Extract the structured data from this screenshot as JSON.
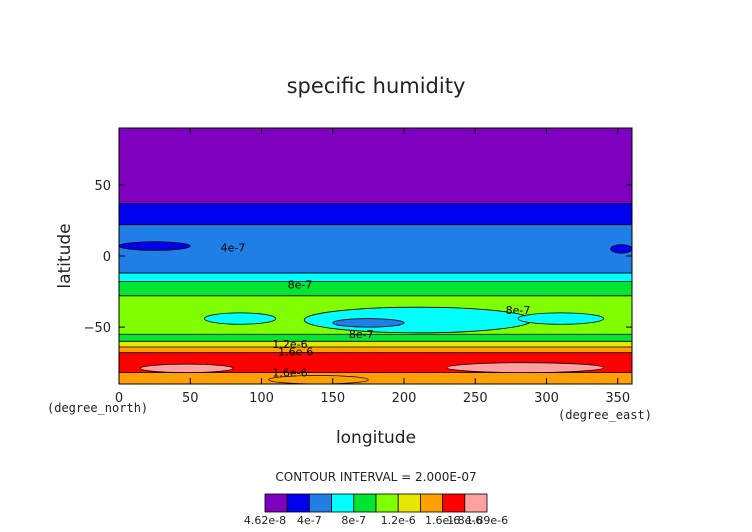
{
  "chart_data": {
    "type": "heatmap",
    "title": "specific humidity",
    "xlabel": "longitude",
    "ylabel": "latitude",
    "x_unit_label": "(degree_east)",
    "y_unit_label": "(degree_north)",
    "xlim": [
      0,
      360
    ],
    "ylim": [
      -90,
      90
    ],
    "x_ticks": [
      0,
      50,
      100,
      150,
      200,
      250,
      300,
      350
    ],
    "y_ticks": [
      50,
      0,
      -50
    ],
    "x_tick_labels": [
      "0",
      "50",
      "100",
      "150",
      "200",
      "250",
      "300",
      "350"
    ],
    "y_tick_labels": [
      "50",
      "0",
      "−50"
    ],
    "contour_interval_text": "CONTOUR INTERVAL = 2.000E-07",
    "levels": [
      4.62e-08,
      2e-07,
      4e-07,
      6e-07,
      8e-07,
      1e-06,
      1.2e-06,
      1.4e-06,
      1.6e-06,
      1.8e-06,
      1.89e-06
    ],
    "colorbar_colors": [
      "#7f00bf",
      "#0000ee",
      "#1f7fe6",
      "#00ffff",
      "#00e632",
      "#7fff00",
      "#e6e600",
      "#ff9f00",
      "#ff0000",
      "#ffa0a0"
    ],
    "colorbar_labels": [
      {
        "level": 4.62e-08,
        "text": "4.62e-8"
      },
      {
        "level": 4e-07,
        "text": "4e-7"
      },
      {
        "level": 8e-07,
        "text": "8e-7"
      },
      {
        "level": 1.2e-06,
        "text": "1.2e-6"
      },
      {
        "level": 1.6e-06,
        "text": "1.6e-6"
      },
      {
        "level": 1.8e-06,
        "text": "1.8e-6"
      },
      {
        "level": 1.89e-06,
        "text": "1.89e-6"
      }
    ],
    "latitude_bands": [
      {
        "lat_min": 37,
        "lat_max": 90,
        "level_index": 0
      },
      {
        "lat_min": 22,
        "lat_max": 37,
        "level_index": 1
      },
      {
        "lat_min": -12,
        "lat_max": 22,
        "level_index": 2
      },
      {
        "lat_min": -18,
        "lat_max": -12,
        "level_index": 3
      },
      {
        "lat_min": -28,
        "lat_max": -18,
        "level_index": 4
      },
      {
        "lat_min": -55,
        "lat_max": -28,
        "level_index": 5
      },
      {
        "lat_min": -60,
        "lat_max": -55,
        "level_index": 4
      },
      {
        "lat_min": -64,
        "lat_max": -60,
        "level_index": 6
      },
      {
        "lat_min": -68,
        "lat_max": -64,
        "level_index": 7
      },
      {
        "lat_min": -82,
        "lat_max": -68,
        "level_index": 8
      },
      {
        "lat_min": -90,
        "lat_max": -82,
        "level_index": 7
      }
    ],
    "patches": [
      {
        "lon_min": 0,
        "lon_max": 50,
        "lat_min": 4,
        "lat_max": 10,
        "level_index": 1
      },
      {
        "lon_min": 345,
        "lon_max": 360,
        "lat_min": 2,
        "lat_max": 8,
        "level_index": 1
      },
      {
        "lon_min": 130,
        "lon_max": 290,
        "lat_min": -54,
        "lat_max": -36,
        "level_index": 3
      },
      {
        "lon_min": 60,
        "lon_max": 110,
        "lat_min": -48,
        "lat_max": -40,
        "level_index": 3
      },
      {
        "lon_min": 150,
        "lon_max": 200,
        "lat_min": -50,
        "lat_max": -44,
        "level_index": 2
      },
      {
        "lon_min": 280,
        "lon_max": 340,
        "lat_min": -48,
        "lat_max": -40,
        "level_index": 3
      },
      {
        "lon_min": 15,
        "lon_max": 80,
        "lat_min": -82,
        "lat_max": -76,
        "level_index": 9
      },
      {
        "lon_min": 230,
        "lon_max": 340,
        "lat_min": -82,
        "lat_max": -75,
        "level_index": 9
      },
      {
        "lon_min": 105,
        "lon_max": 175,
        "lat_min": -90,
        "lat_max": -84,
        "level_index": 7
      }
    ],
    "contour_labels": [
      {
        "lon": 80,
        "lat": 6,
        "text": "4e-7"
      },
      {
        "lon": 127,
        "lat": -20,
        "text": "8e-7"
      },
      {
        "lon": 170,
        "lat": -55,
        "text": "8e-7"
      },
      {
        "lon": 280,
        "lat": -38,
        "text": "8e-7"
      },
      {
        "lon": 120,
        "lat": -62,
        "text": "1.2e-6"
      },
      {
        "lon": 124,
        "lat": -67,
        "text": "1.6e-6"
      },
      {
        "lon": 120,
        "lat": -82,
        "text": "1.6e-6"
      }
    ]
  }
}
